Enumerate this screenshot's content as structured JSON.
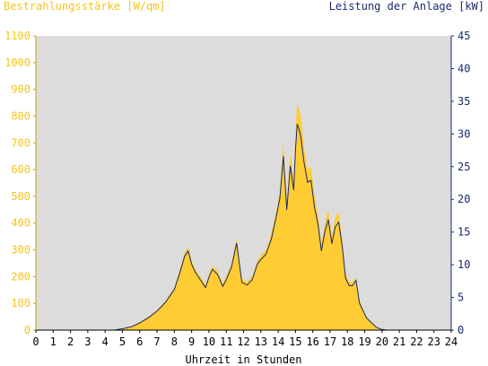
{
  "chart_data": {
    "type": "area",
    "title_left": "Bestrahlungsstärke [W/qm]",
    "title_right": "Leistung der Anlage [kW]",
    "xlabel": "Uhrzeit in Stunden",
    "xlim": [
      0,
      24
    ],
    "x_ticks": [
      0,
      1,
      2,
      3,
      4,
      5,
      6,
      7,
      8,
      9,
      10,
      11,
      12,
      13,
      14,
      15,
      16,
      17,
      18,
      19,
      20,
      21,
      22,
      23,
      24
    ],
    "y_left": {
      "label": "Bestrahlungsstärke [W/qm]",
      "lim": [
        0,
        1100
      ],
      "ticks": [
        0,
        100,
        200,
        300,
        400,
        500,
        600,
        700,
        800,
        900,
        1000,
        1100
      ]
    },
    "y_right": {
      "label": "Leistung der Anlage [kW]",
      "lim": [
        0,
        45
      ],
      "ticks": [
        0,
        5,
        10,
        15,
        20,
        25,
        30,
        35,
        40,
        45
      ]
    },
    "grid": false,
    "colors": {
      "irradiance": "#ffcc33",
      "power": "#1a2a6c",
      "plot_bg": "#dcdcdc",
      "left_axis": "#f5c518",
      "right_axis": "#1a2a6c"
    },
    "series": [
      {
        "name": "Bestrahlungsstärke",
        "axis": "left",
        "x": [
          0,
          4.5,
          5,
          5.5,
          6,
          6.5,
          7,
          7.5,
          8,
          8.3,
          8.6,
          8.8,
          9,
          9.2,
          9.5,
          9.8,
          10,
          10.2,
          10.5,
          10.8,
          11,
          11.3,
          11.6,
          11.9,
          12.2,
          12.5,
          12.8,
          13,
          13.3,
          13.6,
          13.9,
          14.1,
          14.3,
          14.5,
          14.7,
          14.9,
          15,
          15.1,
          15.2,
          15.3,
          15.5,
          15.7,
          15.9,
          16.1,
          16.3,
          16.5,
          16.7,
          16.9,
          17.1,
          17.3,
          17.5,
          17.7,
          17.9,
          18.1,
          18.3,
          18.5,
          18.7,
          18.9,
          19.1,
          19.4,
          19.7,
          20,
          20.3,
          20.5,
          24
        ],
        "values": [
          0,
          0,
          5,
          15,
          30,
          50,
          75,
          110,
          160,
          220,
          290,
          310,
          260,
          230,
          200,
          170,
          210,
          240,
          220,
          175,
          200,
          250,
          345,
          190,
          180,
          200,
          260,
          280,
          300,
          360,
          450,
          520,
          700,
          480,
          660,
          560,
          730,
          850,
          830,
          800,
          680,
          600,
          610,
          500,
          430,
          320,
          400,
          450,
          350,
          420,
          440,
          340,
          210,
          180,
          180,
          200,
          110,
          80,
          50,
          30,
          10,
          3,
          0,
          0,
          0
        ]
      },
      {
        "name": "Leistung der Anlage",
        "axis": "right",
        "x": [
          0,
          4.5,
          5,
          5.5,
          6,
          6.5,
          7,
          7.5,
          8,
          8.3,
          8.6,
          8.8,
          9,
          9.2,
          9.5,
          9.8,
          10,
          10.2,
          10.5,
          10.8,
          11,
          11.3,
          11.6,
          11.9,
          12.2,
          12.5,
          12.8,
          13,
          13.3,
          13.6,
          13.9,
          14.1,
          14.3,
          14.5,
          14.7,
          14.9,
          15,
          15.1,
          15.2,
          15.3,
          15.5,
          15.7,
          15.9,
          16.1,
          16.3,
          16.5,
          16.7,
          16.9,
          17.1,
          17.3,
          17.5,
          17.7,
          17.9,
          18.1,
          18.3,
          18.5,
          18.7,
          18.9,
          19.1,
          19.4,
          19.7,
          20,
          20.3,
          20.5,
          24
        ],
        "values": [
          0,
          0,
          0.2,
          0.5,
          1.1,
          1.9,
          2.9,
          4.3,
          6.2,
          8.6,
          11.3,
          12.1,
          10.1,
          8.9,
          7.7,
          6.5,
          8.1,
          9.3,
          8.5,
          6.7,
          7.7,
          9.6,
          13.3,
          7.3,
          6.9,
          7.7,
          10.1,
          10.8,
          11.6,
          13.9,
          17.5,
          20.2,
          26.6,
          18.4,
          25.1,
          21.4,
          27.6,
          31.5,
          30.8,
          29.7,
          25.6,
          22.6,
          22.9,
          18.8,
          16.2,
          12.1,
          15.1,
          16.9,
          13.2,
          15.8,
          16.5,
          12.8,
          7.9,
          6.8,
          6.8,
          7.6,
          4.1,
          3,
          1.9,
          1.1,
          0.4,
          0.1,
          0,
          0,
          0
        ]
      }
    ]
  }
}
